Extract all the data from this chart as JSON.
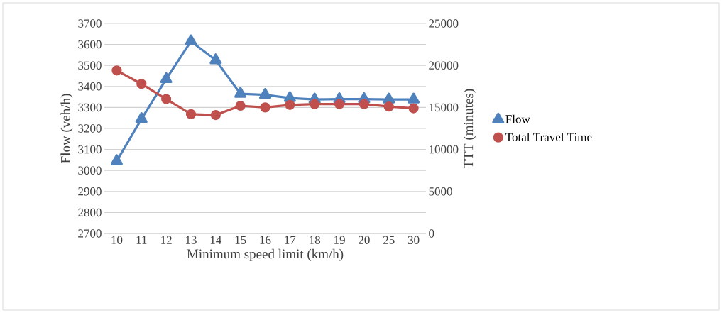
{
  "chart_data": {
    "type": "line",
    "xlabel": "Minimum speed limit (km/h)",
    "ylabel": "Flow (veh/h)",
    "y2label": "TTT (minutes)",
    "categories": [
      "10",
      "11",
      "12",
      "13",
      "14",
      "15",
      "16",
      "17",
      "18",
      "19",
      "20",
      "25",
      "30"
    ],
    "series": [
      {
        "name": "Flow",
        "color": "#4f81bd",
        "marker": "triangle",
        "values": [
          3045,
          3245,
          3435,
          3615,
          3525,
          3365,
          3360,
          3345,
          3338,
          3340,
          3340,
          3338,
          3338
        ]
      },
      {
        "name": "Total Travel Time",
        "color": "#c0504d",
        "marker": "circle",
        "axis": "y2",
        "values": [
          19400,
          17800,
          16000,
          14200,
          14100,
          15200,
          15000,
          15300,
          15400,
          15400,
          15400,
          15100,
          14900
        ]
      }
    ],
    "ylim": [
      2700,
      3700
    ],
    "yticks": [
      2700,
      2800,
      2900,
      3000,
      3100,
      3200,
      3300,
      3400,
      3500,
      3600,
      3700
    ],
    "y2lim": [
      0,
      25000
    ],
    "y2ticks": [
      0,
      5000,
      10000,
      15000,
      20000,
      25000
    ],
    "grid": "y",
    "legend": "right",
    "line_style": "solid"
  }
}
